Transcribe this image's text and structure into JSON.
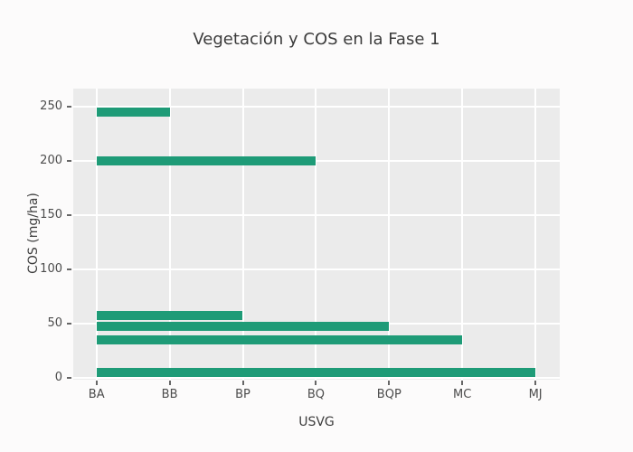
{
  "title": "Vegetación y COS en la Fase 1",
  "colors": {
    "bar": "#1e9b77",
    "plot_background": "#ebebeb",
    "figure_background": "#fcfbfb",
    "gridline": "#ffffff",
    "tick_mark": "#666666",
    "tick_text": "#4c4c4c",
    "label_text": "#3d3d3d"
  },
  "chart_data": {
    "type": "bar",
    "orientation": "horizontal",
    "title": "Vegetación y COS en la Fase 1",
    "xlabel": "USVG",
    "ylabel": "COS (mg/ha)",
    "x_categories": [
      "BA",
      "BB",
      "BP",
      "BQ",
      "BQP",
      "MC",
      "MJ"
    ],
    "y_ticks": [
      0,
      50,
      100,
      150,
      200,
      250
    ],
    "ylim": [
      -2,
      266
    ],
    "grid": true,
    "legend": "none",
    "bars": [
      {
        "cos": 245,
        "start": "BA",
        "end": "BB"
      },
      {
        "cos": 200,
        "start": "BA",
        "end": "BQ"
      },
      {
        "cos": 57,
        "start": "BA",
        "end": "BP"
      },
      {
        "cos": 47,
        "start": "BA",
        "end": "BQP"
      },
      {
        "cos": 35,
        "start": "BA",
        "end": "MC"
      },
      {
        "cos": 5,
        "start": "BA",
        "end": "MJ"
      }
    ]
  }
}
